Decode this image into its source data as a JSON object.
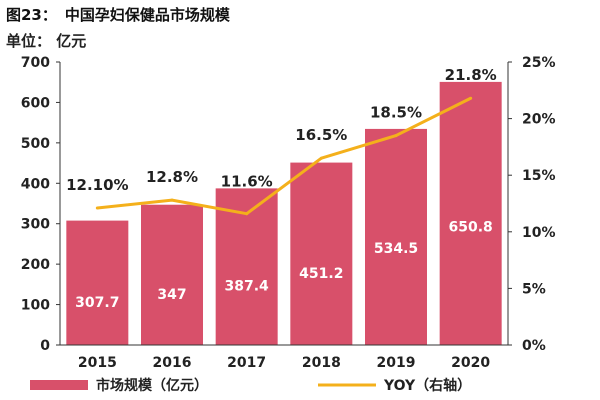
{
  "header": {
    "figure_number": "图23：",
    "title": "中国孕妇保健品市场规模",
    "unit": "单位：  亿元"
  },
  "colors": {
    "bar": "#d8506a",
    "line": "#f4b01b",
    "axis": "#333333"
  },
  "chart_data": {
    "type": "bar",
    "categories": [
      "2015",
      "2016",
      "2017",
      "2018",
      "2019",
      "2020"
    ],
    "series": [
      {
        "name": "市场规模（亿元）",
        "type": "bar",
        "axis": "left",
        "values": [
          307.7,
          347,
          387.4,
          451.2,
          534.5,
          650.8
        ],
        "value_labels": [
          "307.7",
          "347",
          "387.4",
          "451.2",
          "534.5",
          "650.8"
        ]
      },
      {
        "name": "YOY（右轴）",
        "type": "line",
        "axis": "right",
        "values": [
          12.1,
          12.8,
          11.6,
          16.5,
          18.5,
          21.8
        ],
        "value_labels": [
          "12.10%",
          "12.8%",
          "11.6%",
          "16.5%",
          "18.5%",
          "21.8%"
        ]
      }
    ],
    "y_left": {
      "min": 0,
      "max": 700,
      "ticks": [
        "0",
        "100",
        "200",
        "300",
        "400",
        "500",
        "600",
        "700"
      ]
    },
    "y_right": {
      "min": 0,
      "max": 25,
      "ticks": [
        "0%",
        "5%",
        "10%",
        "15%",
        "20%",
        "25%"
      ]
    },
    "grid": false,
    "legend_position": "bottom"
  }
}
